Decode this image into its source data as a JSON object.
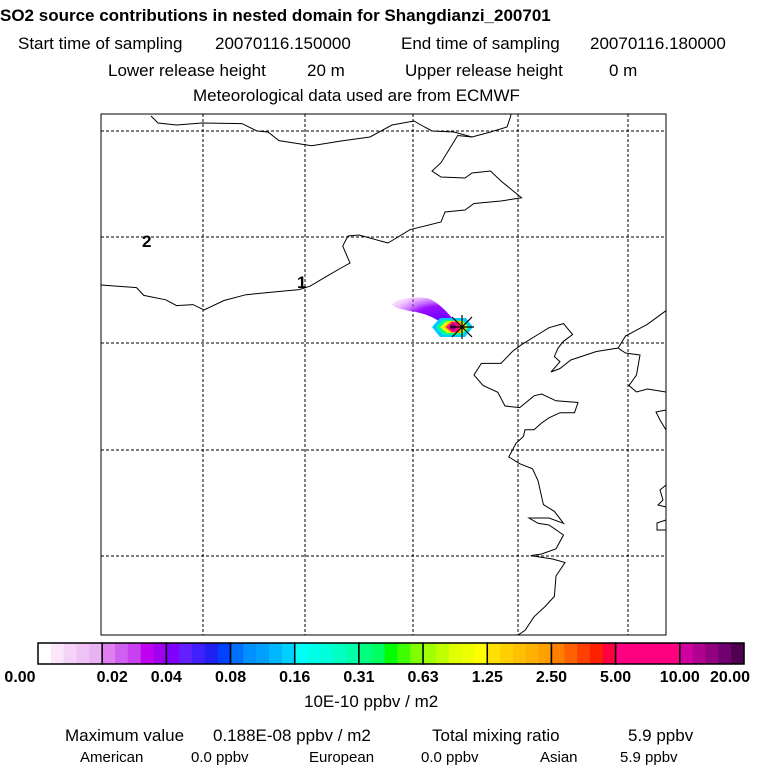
{
  "chart_data": {
    "type": "heatmap",
    "title": "SO2 source contributions in nested domain for Shangdianzi_200701",
    "start_label": "Start time of sampling",
    "start_value": "20070116.150000",
    "end_label": "End time of sampling",
    "end_value": "20070116.180000",
    "lower_label": "Lower release height",
    "lower_value": "20 m",
    "upper_label": "Upper release height",
    "upper_value": "0 m",
    "met_note": "Meteorological data used are from ECMWF",
    "contour_labels": [
      "2",
      "1"
    ],
    "colorbar": {
      "ticks": [
        "0.00",
        "0.02",
        "0.04",
        "0.08",
        "0.16",
        "0.31",
        "0.63",
        "1.25",
        "2.50",
        "5.00",
        "10.00",
        "20.00"
      ],
      "unit": "10E-10 ppbv / m2",
      "segments": [
        [
          "#ffffff",
          "#fbe6fb",
          "#f5d2f7",
          "#efc2f5",
          "#e8b2f3"
        ],
        [
          "#e080f0",
          "#d060f0",
          "#c840f0",
          "#c000f0",
          "#a000f0"
        ],
        [
          "#8000ff",
          "#6020ff",
          "#4020ff",
          "#2020f0",
          "#0040ff"
        ],
        [
          "#0070ff",
          "#0090ff",
          "#00a0ff",
          "#00b8ff",
          "#00d0ff"
        ],
        [
          "#00fff8",
          "#00ffe8",
          "#00ffd8",
          "#00ffc0",
          "#00ffa8"
        ],
        [
          "#00ff80",
          "#00ff60",
          "#00ff00",
          "#40ff00",
          "#80ff00"
        ],
        [
          "#a0ff00",
          "#c0ff00",
          "#e0ff00",
          "#f0ff00",
          "#ffff00"
        ],
        [
          "#ffe000",
          "#ffd000",
          "#ffc000",
          "#ffb000",
          "#ffa000"
        ],
        [
          "#ff8000",
          "#ff6000",
          "#ff4000",
          "#ff2000",
          "#ff0040"
        ],
        [
          "#ff0080",
          "#ff0080",
          "#ff0080",
          "#ff0080",
          "#ff0080"
        ],
        [
          "#d000a0",
          "#b00090",
          "#900080",
          "#700070",
          "#500050"
        ]
      ]
    },
    "plume": {
      "source_marker": "star",
      "peak_value_ppbv_per_m2": "0.188E-08"
    }
  },
  "footer": {
    "max_label": "Maximum value",
    "max_value": "0.188E-08 ppbv / m2",
    "total_label": "Total mixing ratio",
    "total_value": "5.9 ppbv",
    "american_label": "American",
    "american_value": "0.0 ppbv",
    "european_label": "European",
    "european_value": "0.0 ppbv",
    "asian_label": "Asian",
    "asian_value": "5.9 ppbv"
  }
}
